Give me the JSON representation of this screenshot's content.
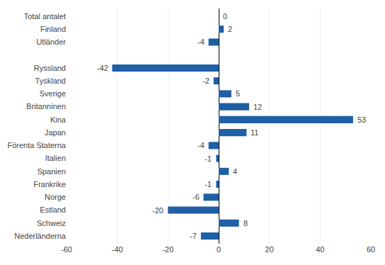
{
  "chart_data": {
    "type": "bar",
    "orientation": "horizontal",
    "categories": [
      "Nederländerna",
      "Schweiz",
      "Estland",
      "Norge",
      "Frankrike",
      "Spanien",
      "Italien",
      "Förenta Staterna",
      "Japan",
      "Kina",
      "Britanninen",
      "Sverige",
      "Tyskland",
      "Ryssland",
      null,
      "Utländer",
      "Finland",
      "Total antalet"
    ],
    "values": [
      -7,
      8,
      -20,
      -6,
      -1,
      4,
      -1,
      -4,
      11,
      53,
      12,
      5,
      -2,
      -42,
      null,
      -4,
      2,
      0
    ],
    "color": "#1f5fa6",
    "xlim": [
      -60,
      60
    ],
    "xticks": [
      -60,
      -40,
      -20,
      0,
      20,
      40,
      60
    ],
    "grid": true,
    "data_labels": true
  }
}
